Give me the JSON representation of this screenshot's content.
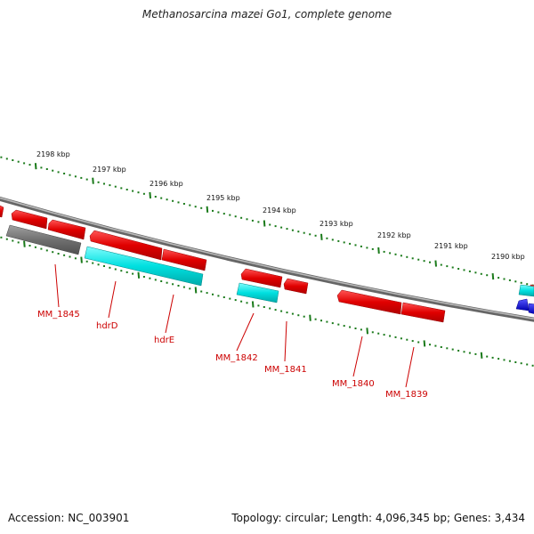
{
  "title": "Methanosarcina mazei Go1, complete genome",
  "footer": {
    "accession": "Accession: NC_003901",
    "summary": "Topology: circular; Length: 4,096,345 bp; Genes: 3,434"
  },
  "colors": {
    "forward_gene": "#e60000",
    "reverse_gene_cyan": "#00e5e5",
    "reverse_gene_gray": "#777777",
    "reverse_gene_blue": "#0000e0",
    "backbone": "#888888",
    "ticks": "#1a7a1a",
    "labels": "#cc0000"
  },
  "scale_labels": [
    "2198 kbp",
    "2197 kbp",
    "2196 kbp",
    "2195 kbp",
    "2194 kbp",
    "2193 kbp",
    "2192 kbp",
    "2191 kbp",
    "2190 kbp"
  ],
  "gene_labels": [
    "MM_1845",
    "hdrD",
    "hdrE",
    "MM_1842",
    "MM_1841",
    "MM_1840",
    "MM_1839"
  ]
}
